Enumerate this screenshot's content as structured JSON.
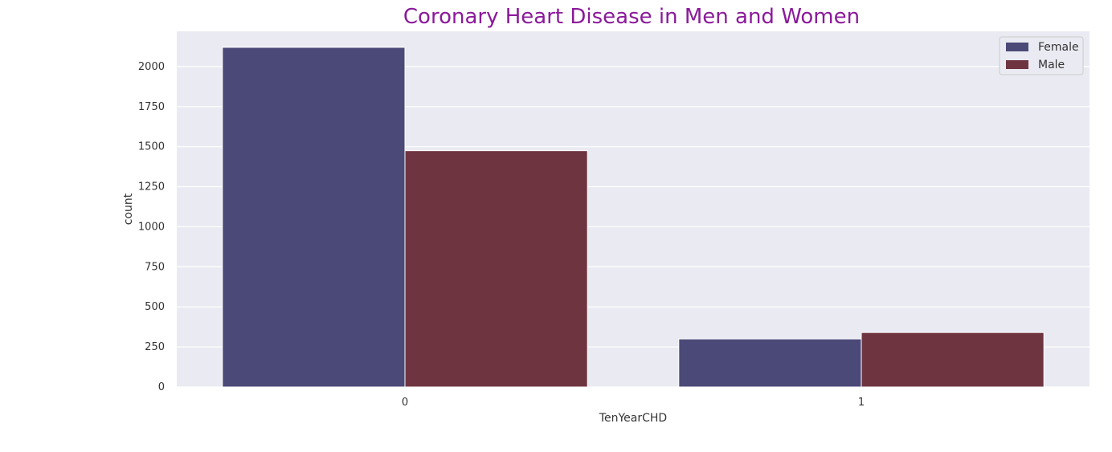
{
  "chart_data": {
    "type": "bar",
    "title": "Coronary Heart Disease in Men and Women",
    "xlabel": "TenYearCHD",
    "ylabel": "count",
    "categories": [
      "0",
      "1"
    ],
    "ylim": [
      0,
      2220
    ],
    "yticks": [
      0,
      250,
      500,
      750,
      1000,
      1250,
      1500,
      1750,
      2000
    ],
    "grid": true,
    "legend_position": "top-right",
    "series": [
      {
        "name": "Female",
        "color": "#4b4978",
        "values": [
          2120,
          300
        ]
      },
      {
        "name": "Male",
        "color": "#6e3541",
        "values": [
          1475,
          340
        ]
      }
    ]
  },
  "colors": {
    "plot_background": "#eaeaf2",
    "grid": "#ffffff",
    "title": "#8b1a9b"
  }
}
